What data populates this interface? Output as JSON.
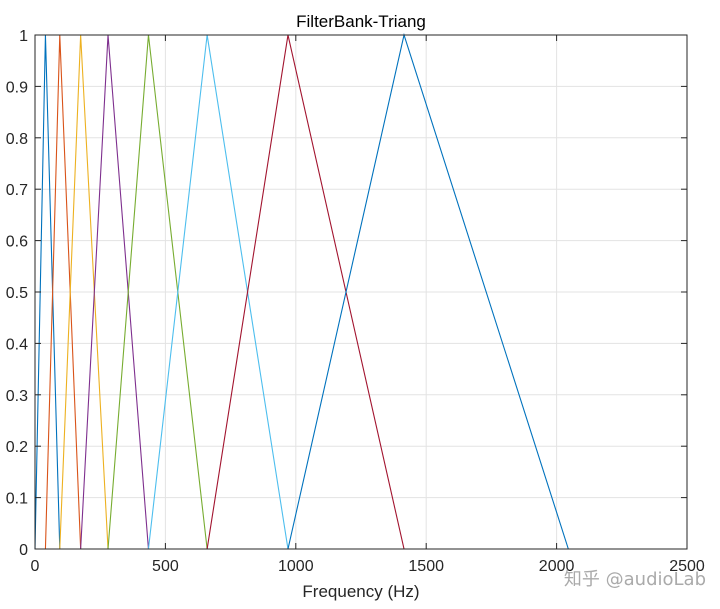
{
  "chart_data": {
    "type": "line",
    "title": "FilterBank-Triang",
    "xlabel": "Frequency (Hz)",
    "ylabel": "",
    "xlim": [
      0,
      2500
    ],
    "ylim": [
      0,
      1
    ],
    "xticks": [
      0,
      500,
      1000,
      1500,
      2000,
      2500
    ],
    "yticks": [
      0,
      0.1,
      0.2,
      0.3,
      0.4,
      0.5,
      0.6,
      0.7,
      0.8,
      0.9,
      1
    ],
    "xtick_labels": [
      "0",
      "500",
      "1000",
      "1500",
      "2000",
      "2500"
    ],
    "ytick_labels": [
      "0",
      "0.1",
      "0.2",
      "0.3",
      "0.4",
      "0.5",
      "0.6",
      "0.7",
      "0.8",
      "0.9",
      "1"
    ],
    "grid": true,
    "legend": false,
    "series": [
      {
        "color": "#0072bd",
        "x": [
          0,
          40,
          95
        ],
        "y": [
          0,
          1,
          0
        ]
      },
      {
        "color": "#d95319",
        "x": [
          40,
          95,
          175
        ],
        "y": [
          0,
          1,
          0
        ]
      },
      {
        "color": "#edb120",
        "x": [
          95,
          175,
          280
        ],
        "y": [
          0,
          1,
          0
        ]
      },
      {
        "color": "#7e2f8e",
        "x": [
          175,
          280,
          435
        ],
        "y": [
          0,
          1,
          0
        ]
      },
      {
        "color": "#77ac30",
        "x": [
          280,
          435,
          660
        ],
        "y": [
          0,
          1,
          0
        ]
      },
      {
        "color": "#4dbeee",
        "x": [
          435,
          660,
          970
        ],
        "y": [
          0,
          1,
          0
        ]
      },
      {
        "color": "#a2142f",
        "x": [
          660,
          970,
          1415
        ],
        "y": [
          0,
          1,
          0
        ]
      },
      {
        "color": "#0072bd",
        "x": [
          970,
          1415,
          2045
        ],
        "y": [
          0,
          1,
          0
        ]
      }
    ]
  },
  "watermark": {
    "text": "知乎 @audioLab"
  }
}
